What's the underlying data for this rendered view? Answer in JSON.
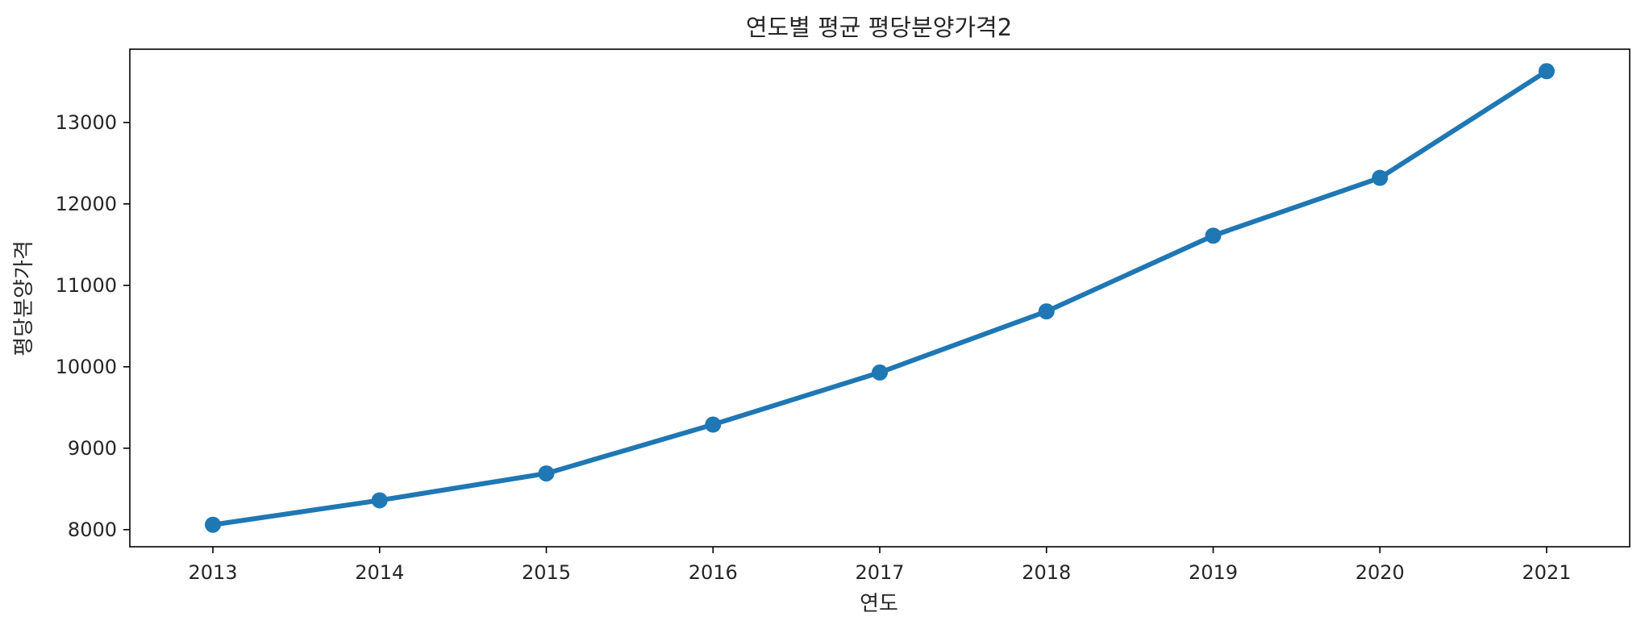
{
  "chart_data": {
    "type": "line",
    "title": "연도별 평균 평당분양가격2",
    "xlabel": "연도",
    "ylabel": "평당분양가격",
    "categories": [
      "2013",
      "2014",
      "2015",
      "2016",
      "2017",
      "2018",
      "2019",
      "2020",
      "2021"
    ],
    "series": [
      {
        "values": [
          8060,
          8360,
          8690,
          9290,
          9930,
          10680,
          11610,
          12320,
          13630
        ]
      }
    ],
    "yticks": [
      8000,
      9000,
      10000,
      11000,
      12000,
      13000
    ],
    "ylim": [
      7790,
      13900
    ],
    "grid": false,
    "color": "#1f77b4"
  }
}
